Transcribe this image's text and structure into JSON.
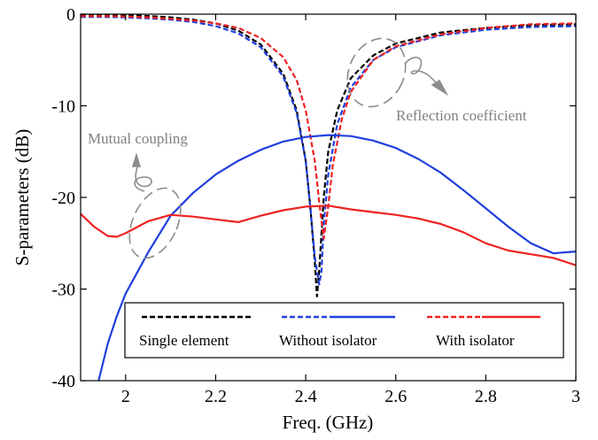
{
  "chart_data": {
    "type": "line",
    "title": "",
    "xlabel": "Freq. (GHz)",
    "ylabel": "S-parameters (dB)",
    "xlim": [
      1.9,
      3.0
    ],
    "ylim": [
      -40,
      0
    ],
    "xticks": [
      2,
      2.2,
      2.4,
      2.6,
      2.8,
      3
    ],
    "xtick_labels": [
      "2",
      "2.2",
      "2.4",
      "2.6",
      "2.8",
      "3"
    ],
    "yticks": [
      0,
      -10,
      -20,
      -30,
      -40
    ],
    "ytick_labels": [
      "0",
      "-10",
      "-20",
      "-30",
      "-40"
    ],
    "grid": false,
    "legend_position": "bottom-center",
    "legend": {
      "single": "Single element",
      "without": "Without isolator",
      "with": "With isolator"
    },
    "annotations": {
      "mutual": "Mutual coupling",
      "reflection": "Reflection coefficient"
    },
    "series": [
      {
        "key": "single_s11",
        "color": "#000000",
        "dash": "6,3",
        "points": [
          [
            1.9,
            -0.1
          ],
          [
            1.95,
            -0.05
          ],
          [
            2.0,
            -0.1
          ],
          [
            2.05,
            -0.2
          ],
          [
            2.1,
            -0.35
          ],
          [
            2.15,
            -0.6
          ],
          [
            2.2,
            -1.0
          ],
          [
            2.25,
            -1.8
          ],
          [
            2.3,
            -3.3
          ],
          [
            2.35,
            -6.5
          ],
          [
            2.38,
            -10.5
          ],
          [
            2.4,
            -16.0
          ],
          [
            2.41,
            -21.0
          ],
          [
            2.42,
            -27.0
          ],
          [
            2.425,
            -30.8
          ],
          [
            2.43,
            -28.0
          ],
          [
            2.44,
            -20.0
          ],
          [
            2.45,
            -15.0
          ],
          [
            2.47,
            -10.5
          ],
          [
            2.5,
            -7.0
          ],
          [
            2.55,
            -4.5
          ],
          [
            2.6,
            -3.2
          ],
          [
            2.7,
            -2.0
          ],
          [
            2.8,
            -1.5
          ],
          [
            2.9,
            -1.2
          ],
          [
            3.0,
            -1.1
          ]
        ]
      },
      {
        "key": "without_s11",
        "color": "#1f3fdd",
        "dash": "6,3",
        "points": [
          [
            1.9,
            -0.3
          ],
          [
            1.95,
            -0.3
          ],
          [
            2.0,
            -0.35
          ],
          [
            2.05,
            -0.45
          ],
          [
            2.1,
            -0.6
          ],
          [
            2.15,
            -0.85
          ],
          [
            2.2,
            -1.3
          ],
          [
            2.25,
            -2.1
          ],
          [
            2.3,
            -3.6
          ],
          [
            2.35,
            -6.8
          ],
          [
            2.38,
            -10.8
          ],
          [
            2.4,
            -16.0
          ],
          [
            2.41,
            -21.0
          ],
          [
            2.42,
            -26.5
          ],
          [
            2.43,
            -29.5
          ],
          [
            2.435,
            -28.0
          ],
          [
            2.44,
            -23.0
          ],
          [
            2.45,
            -17.5
          ],
          [
            2.47,
            -12.0
          ],
          [
            2.5,
            -8.0
          ],
          [
            2.55,
            -5.0
          ],
          [
            2.6,
            -3.6
          ],
          [
            2.7,
            -2.3
          ],
          [
            2.8,
            -1.7
          ],
          [
            2.9,
            -1.4
          ],
          [
            3.0,
            -1.3
          ]
        ]
      },
      {
        "key": "with_s11",
        "color": "#ee2222",
        "dash": "6,3",
        "points": [
          [
            1.9,
            -0.2
          ],
          [
            1.95,
            -0.2
          ],
          [
            2.0,
            -0.25
          ],
          [
            2.05,
            -0.35
          ],
          [
            2.1,
            -0.5
          ],
          [
            2.15,
            -0.7
          ],
          [
            2.2,
            -1.0
          ],
          [
            2.25,
            -1.5
          ],
          [
            2.3,
            -2.6
          ],
          [
            2.35,
            -4.7
          ],
          [
            2.38,
            -7.2
          ],
          [
            2.4,
            -10.5
          ],
          [
            2.42,
            -16.0
          ],
          [
            2.43,
            -20.5
          ],
          [
            2.44,
            -24.5
          ],
          [
            2.45,
            -21.0
          ],
          [
            2.46,
            -16.5
          ],
          [
            2.48,
            -11.5
          ],
          [
            2.5,
            -8.5
          ],
          [
            2.55,
            -5.0
          ],
          [
            2.6,
            -3.5
          ],
          [
            2.7,
            -2.2
          ],
          [
            2.8,
            -1.5
          ],
          [
            2.9,
            -1.1
          ],
          [
            3.0,
            -1.0
          ]
        ]
      },
      {
        "key": "without_s21",
        "color": "#1f3fdd",
        "dash": "",
        "points": [
          [
            1.94,
            -40.0
          ],
          [
            1.96,
            -36.0
          ],
          [
            1.98,
            -33.0
          ],
          [
            2.0,
            -30.5
          ],
          [
            2.05,
            -26.0
          ],
          [
            2.1,
            -22.0
          ],
          [
            2.15,
            -19.5
          ],
          [
            2.2,
            -17.5
          ],
          [
            2.25,
            -16.0
          ],
          [
            2.3,
            -14.8
          ],
          [
            2.35,
            -13.9
          ],
          [
            2.4,
            -13.4
          ],
          [
            2.45,
            -13.2
          ],
          [
            2.5,
            -13.3
          ],
          [
            2.55,
            -13.8
          ],
          [
            2.6,
            -14.6
          ],
          [
            2.65,
            -15.8
          ],
          [
            2.7,
            -17.3
          ],
          [
            2.75,
            -19.2
          ],
          [
            2.8,
            -21.2
          ],
          [
            2.85,
            -23.2
          ],
          [
            2.9,
            -25.0
          ],
          [
            2.95,
            -26.1
          ],
          [
            3.0,
            -25.9
          ]
        ]
      },
      {
        "key": "with_s21",
        "color": "#ee2222",
        "dash": "",
        "points": [
          [
            1.9,
            -21.8
          ],
          [
            1.93,
            -23.2
          ],
          [
            1.96,
            -24.2
          ],
          [
            1.98,
            -24.3
          ],
          [
            2.0,
            -23.9
          ],
          [
            2.05,
            -22.6
          ],
          [
            2.1,
            -21.9
          ],
          [
            2.15,
            -22.1
          ],
          [
            2.2,
            -22.4
          ],
          [
            2.25,
            -22.7
          ],
          [
            2.3,
            -22.0
          ],
          [
            2.35,
            -21.4
          ],
          [
            2.4,
            -21.0
          ],
          [
            2.45,
            -20.9
          ],
          [
            2.5,
            -21.3
          ],
          [
            2.55,
            -21.6
          ],
          [
            2.6,
            -21.9
          ],
          [
            2.65,
            -22.3
          ],
          [
            2.7,
            -22.9
          ],
          [
            2.75,
            -23.8
          ],
          [
            2.8,
            -25.0
          ],
          [
            2.85,
            -25.8
          ],
          [
            2.9,
            -26.2
          ],
          [
            2.95,
            -26.6
          ],
          [
            3.0,
            -27.4
          ]
        ]
      }
    ]
  }
}
